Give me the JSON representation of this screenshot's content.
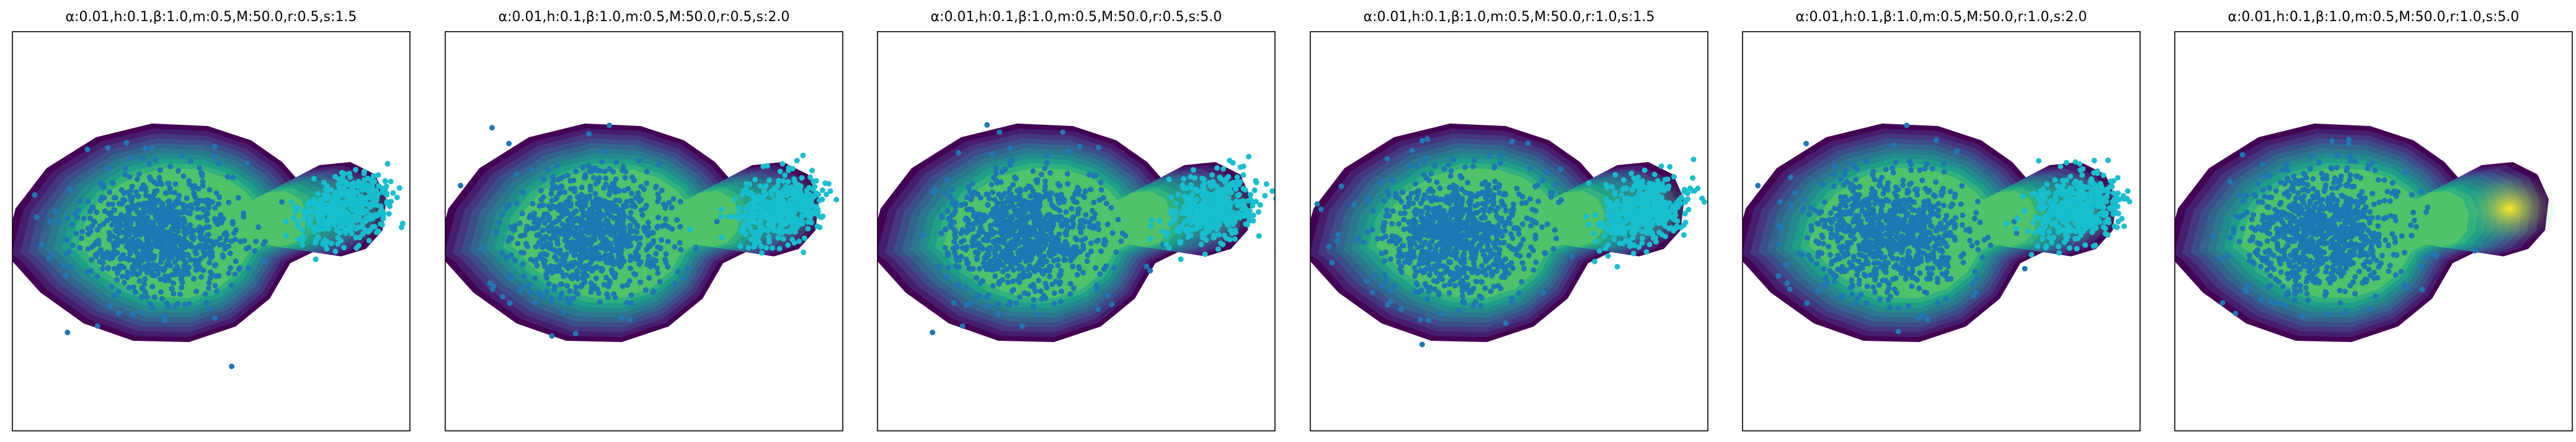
{
  "chart_data": [
    {
      "type": "heatmap",
      "title": "α:0.01,h:0.1,β:1.0,m:0.5,M:50.0,r:0.5,s:1.5",
      "params": {
        "alpha": 0.01,
        "h": 0.1,
        "beta": 1.0,
        "m": 0.5,
        "M": 50.0,
        "r": 0.5,
        "s": 1.5
      },
      "grid": false,
      "xticks": [],
      "yticks": [],
      "field_hot_spot_intensity": 0.55,
      "colormap": "viridis",
      "scatter_colors": [
        "#1f77b4",
        "#17becf"
      ]
    },
    {
      "type": "heatmap",
      "title": "α:0.01,h:0.1,β:1.0,m:0.5,M:50.0,r:0.5,s:2.0",
      "params": {
        "alpha": 0.01,
        "h": 0.1,
        "beta": 1.0,
        "m": 0.5,
        "M": 50.0,
        "r": 0.5,
        "s": 2.0
      },
      "grid": false,
      "xticks": [],
      "yticks": [],
      "field_hot_spot_intensity": 0.55,
      "colormap": "viridis",
      "scatter_colors": [
        "#1f77b4",
        "#17becf"
      ]
    },
    {
      "type": "heatmap",
      "title": "α:0.01,h:0.1,β:1.0,m:0.5,M:50.0,r:0.5,s:5.0",
      "params": {
        "alpha": 0.01,
        "h": 0.1,
        "beta": 1.0,
        "m": 0.5,
        "M": 50.0,
        "r": 0.5,
        "s": 5.0
      },
      "grid": false,
      "xticks": [],
      "yticks": [],
      "field_hot_spot_intensity": 0.6,
      "colormap": "viridis",
      "scatter_colors": [
        "#1f77b4",
        "#17becf"
      ]
    },
    {
      "type": "heatmap",
      "title": "α:0.01,h:0.1,β:1.0,m:0.5,M:50.0,r:1.0,s:1.5",
      "params": {
        "alpha": 0.01,
        "h": 0.1,
        "beta": 1.0,
        "m": 0.5,
        "M": 50.0,
        "r": 1.0,
        "s": 1.5
      },
      "grid": false,
      "xticks": [],
      "yticks": [],
      "field_hot_spot_intensity": 0.6,
      "colormap": "viridis",
      "scatter_colors": [
        "#1f77b4",
        "#17becf"
      ]
    },
    {
      "type": "heatmap",
      "title": "α:0.01,h:0.1,β:1.0,m:0.5,M:50.0,r:1.0,s:2.0",
      "params": {
        "alpha": 0.01,
        "h": 0.1,
        "beta": 1.0,
        "m": 0.5,
        "M": 50.0,
        "r": 1.0,
        "s": 2.0
      },
      "grid": false,
      "xticks": [],
      "yticks": [],
      "field_hot_spot_intensity": 0.62,
      "colormap": "viridis",
      "scatter_colors": [
        "#1f77b4",
        "#17becf"
      ]
    },
    {
      "type": "heatmap",
      "title": "α:0.01,h:0.1,β:1.0,m:0.5,M:50.0,r:1.0,s:5.0",
      "params": {
        "alpha": 0.01,
        "h": 0.1,
        "beta": 1.0,
        "m": 0.5,
        "M": 50.0,
        "r": 1.0,
        "s": 5.0
      },
      "grid": false,
      "xticks": [],
      "yticks": [],
      "field_hot_spot_intensity": 1.0,
      "colormap": "viridis",
      "scatter_colors": [
        "#1f77b4",
        "#17becf"
      ]
    }
  ]
}
